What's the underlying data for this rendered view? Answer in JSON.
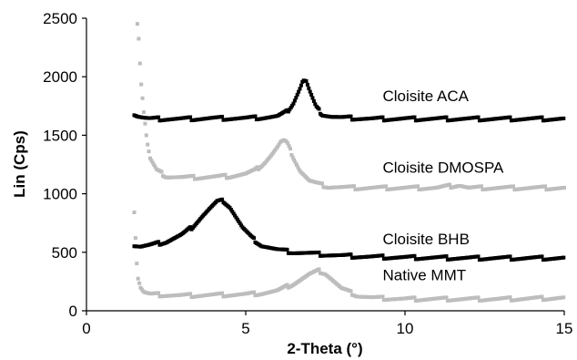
{
  "chart_data": {
    "type": "scatter",
    "title": "",
    "xlabel": "2-Theta (°)",
    "ylabel": "Lin (Cps)",
    "xlim": [
      0,
      15
    ],
    "ylim": [
      0,
      2500
    ],
    "xticks": [
      "0",
      "5",
      "10",
      "15"
    ],
    "yticks": [
      "0",
      "500",
      "1000",
      "1500",
      "2000",
      "2500"
    ],
    "grid": false,
    "legend": "none",
    "series": [
      {
        "name": "Cloisite ACA",
        "color": "#000000",
        "x": [
          1.5,
          1.6,
          1.8,
          2.0,
          2.5,
          3.0,
          4.0,
          5.0,
          5.5,
          6.0,
          6.3,
          6.5,
          6.7,
          6.8,
          6.9,
          7.0,
          7.2,
          7.4,
          7.7,
          8.0,
          8.5,
          9.0,
          10.0,
          11.0,
          12.0,
          13.0,
          14.0,
          15.0
        ],
        "y": [
          1680,
          1665,
          1650,
          1640,
          1640,
          1640,
          1645,
          1645,
          1650,
          1660,
          1700,
          1780,
          1900,
          1970,
          1960,
          1880,
          1740,
          1680,
          1660,
          1650,
          1645,
          1640,
          1640,
          1640,
          1640,
          1640,
          1640,
          1640
        ]
      },
      {
        "name": "Cloisite DMOSPA",
        "color": "#bdbdbd",
        "x": [
          1.6,
          1.65,
          1.7,
          1.8,
          1.9,
          2.0,
          2.2,
          2.5,
          3.0,
          3.5,
          4.0,
          4.5,
          5.0,
          5.3,
          5.6,
          5.8,
          6.0,
          6.1,
          6.2,
          6.3,
          6.5,
          6.7,
          7.0,
          7.3,
          7.6,
          8.0,
          8.5,
          9.0,
          10.0,
          11.0,
          11.7,
          12.0,
          13.0,
          14.0,
          15.0
        ],
        "y": [
          2460,
          2300,
          2000,
          1700,
          1450,
          1300,
          1200,
          1150,
          1140,
          1140,
          1145,
          1150,
          1170,
          1200,
          1270,
          1330,
          1400,
          1440,
          1450,
          1430,
          1310,
          1200,
          1110,
          1080,
          1060,
          1055,
          1050,
          1050,
          1050,
          1050,
          1075,
          1050,
          1050,
          1050,
          1050
        ]
      },
      {
        "name": "Cloisite BHB",
        "color": "#000000",
        "x": [
          1.5,
          1.7,
          2.0,
          2.5,
          3.0,
          3.3,
          3.6,
          3.9,
          4.1,
          4.3,
          4.5,
          4.7,
          4.9,
          5.2,
          5.5,
          6.0,
          6.5,
          7.0,
          8.0,
          9.0,
          10.0,
          12.0,
          15.0
        ],
        "y": [
          560,
          550,
          560,
          590,
          650,
          710,
          800,
          880,
          930,
          940,
          890,
          800,
          710,
          620,
          560,
          520,
          500,
          490,
          470,
          460,
          455,
          450,
          450
        ]
      },
      {
        "name": "Native MMT",
        "color": "#bdbdbd",
        "x": [
          1.5,
          1.6,
          1.7,
          1.8,
          2.0,
          2.5,
          3.0,
          4.0,
          5.0,
          5.5,
          6.0,
          6.5,
          7.0,
          7.3,
          7.5,
          7.7,
          8.0,
          8.5,
          9.0,
          10.0,
          11.0,
          12.0,
          13.0,
          14.0,
          15.0
        ],
        "y": [
          850,
          300,
          200,
          160,
          140,
          135,
          130,
          135,
          140,
          150,
          170,
          230,
          310,
          340,
          320,
          270,
          190,
          130,
          110,
          100,
          100,
          100,
          100,
          105,
          110
        ]
      }
    ],
    "annotations": [
      {
        "text": "Cloisite ACA",
        "x": 9.3,
        "y": 1790
      },
      {
        "text": "Cloisite DMOSPA",
        "x": 9.3,
        "y": 1180
      },
      {
        "text": "Cloisite BHB",
        "x": 9.3,
        "y": 570
      },
      {
        "text": "Native MMT",
        "x": 9.3,
        "y": 260
      }
    ]
  }
}
